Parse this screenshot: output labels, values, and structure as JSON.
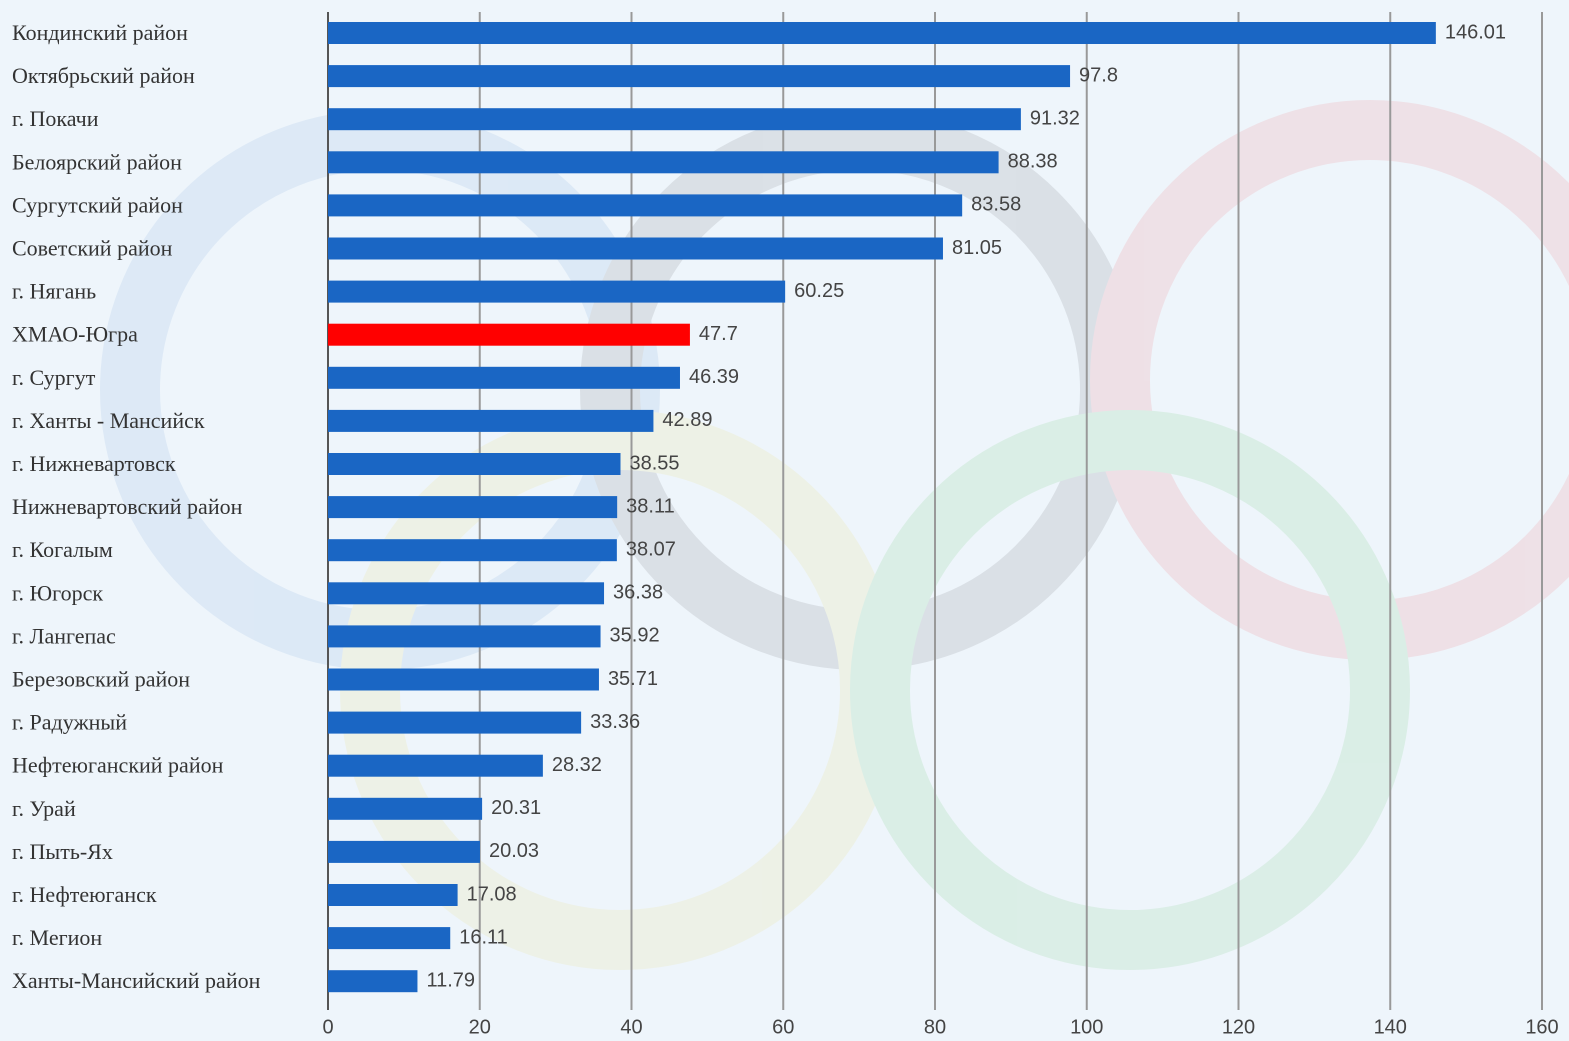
{
  "chart_data": {
    "type": "barh",
    "categories": [
      "Кондинский район",
      "Октябрьский район",
      "г. Покачи",
      "Белоярский район",
      "Сургутский район",
      "Советский район",
      "г. Нягань",
      "ХМАО-Югра",
      "г. Сургут",
      "г. Ханты - Мансийск",
      "г. Нижневартовск",
      "Нижневартовский район",
      "г. Когалым",
      "г. Югорск",
      "г. Лангепас",
      "Березовский район",
      "г. Радужный",
      "Нефтеюганский район",
      "г. Урай",
      "г. Пыть-Ях",
      "г. Нефтеюганск",
      "г. Мегион",
      "Ханты-Мансийский район"
    ],
    "values": [
      146.01,
      97.8,
      91.32,
      88.38,
      83.58,
      81.05,
      60.25,
      47.7,
      46.39,
      42.89,
      38.55,
      38.11,
      38.07,
      36.38,
      35.92,
      35.71,
      33.36,
      28.32,
      20.31,
      20.03,
      17.08,
      16.11,
      11.79
    ],
    "colors": [
      "#1a66c4",
      "#1a66c4",
      "#1a66c4",
      "#1a66c4",
      "#1a66c4",
      "#1a66c4",
      "#1a66c4",
      "#ff0000",
      "#1a66c4",
      "#1a66c4",
      "#1a66c4",
      "#1a66c4",
      "#1a66c4",
      "#1a66c4",
      "#1a66c4",
      "#1a66c4",
      "#1a66c4",
      "#1a66c4",
      "#1a66c4",
      "#1a66c4",
      "#1a66c4",
      "#1a66c4",
      "#1a66c4"
    ],
    "xlim": [
      0,
      160
    ],
    "xticks": [
      0,
      20,
      40,
      60,
      80,
      100,
      120,
      140,
      160
    ],
    "grid": true
  }
}
